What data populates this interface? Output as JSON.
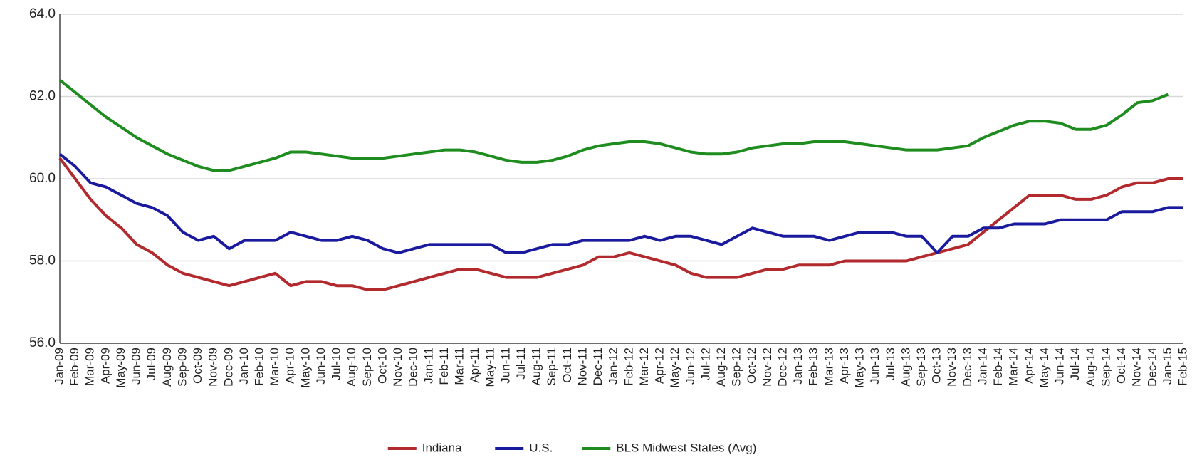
{
  "chart_data": {
    "type": "line",
    "categories": [
      "Jan-09",
      "Feb-09",
      "Mar-09",
      "Apr-09",
      "May-09",
      "Jun-09",
      "Jul-09",
      "Aug-09",
      "Sep-09",
      "Oct-09",
      "Nov-09",
      "Dec-09",
      "Jan-10",
      "Feb-10",
      "Mar-10",
      "Apr-10",
      "May-10",
      "Jun-10",
      "Jul-10",
      "Aug-10",
      "Sep-10",
      "Oct-10",
      "Nov-10",
      "Dec-10",
      "Jan-11",
      "Feb-11",
      "Mar-11",
      "Apr-11",
      "May-11",
      "Jun-11",
      "Jul-11",
      "Aug-11",
      "Sep-11",
      "Oct-11",
      "Nov-11",
      "Dec-11",
      "Jan-12",
      "Feb-12",
      "Mar-12",
      "Apr-12",
      "May-12",
      "Jun-12",
      "Jul-12",
      "Aug-12",
      "Sep-12",
      "Oct-12",
      "Nov-12",
      "Dec-12",
      "Jan-13",
      "Feb-13",
      "Mar-13",
      "Apr-13",
      "May-13",
      "Jun-13",
      "Jul-13",
      "Aug-13",
      "Sep-13",
      "Oct-13",
      "Nov-13",
      "Dec-13",
      "Jan-14",
      "Feb-14",
      "Mar-14",
      "Apr-14",
      "May-14",
      "Jun-14",
      "Jul-14",
      "Aug-14",
      "Sep-14",
      "Oct-14",
      "Nov-14",
      "Dec-14",
      "Jan-15",
      "Feb-15"
    ],
    "series": [
      {
        "name": "Indiana",
        "color": "#b22a2e",
        "values": [
          60.5,
          60.0,
          59.5,
          59.1,
          58.8,
          58.4,
          58.2,
          57.9,
          57.7,
          57.6,
          57.5,
          57.4,
          57.5,
          57.6,
          57.7,
          57.4,
          57.5,
          57.5,
          57.4,
          57.4,
          57.3,
          57.3,
          57.4,
          57.5,
          57.6,
          57.7,
          57.8,
          57.8,
          57.7,
          57.6,
          57.6,
          57.6,
          57.7,
          57.8,
          57.9,
          58.1,
          58.1,
          58.2,
          58.1,
          58.0,
          57.9,
          57.7,
          57.6,
          57.6,
          57.6,
          57.7,
          57.8,
          57.8,
          57.9,
          57.9,
          57.9,
          58.0,
          58.0,
          58.0,
          58.0,
          58.0,
          58.1,
          58.2,
          58.3,
          58.4,
          58.7,
          59.0,
          59.3,
          59.6,
          59.6,
          59.6,
          59.5,
          59.5,
          59.6,
          59.8,
          59.9,
          59.9,
          60.0,
          60.0
        ]
      },
      {
        "name": "U.S.",
        "color": "#1a1a9e",
        "values": [
          60.6,
          60.3,
          59.9,
          59.8,
          59.6,
          59.4,
          59.3,
          59.1,
          58.7,
          58.5,
          58.6,
          58.3,
          58.5,
          58.5,
          58.5,
          58.7,
          58.6,
          58.5,
          58.5,
          58.6,
          58.5,
          58.3,
          58.2,
          58.3,
          58.4,
          58.4,
          58.4,
          58.4,
          58.4,
          58.2,
          58.2,
          58.3,
          58.4,
          58.4,
          58.5,
          58.5,
          58.5,
          58.5,
          58.6,
          58.5,
          58.6,
          58.6,
          58.5,
          58.4,
          58.6,
          58.8,
          58.7,
          58.6,
          58.6,
          58.6,
          58.5,
          58.6,
          58.7,
          58.7,
          58.7,
          58.6,
          58.6,
          58.2,
          58.6,
          58.6,
          58.8,
          58.8,
          58.9,
          58.9,
          58.9,
          59.0,
          59.0,
          59.0,
          59.0,
          59.2,
          59.2,
          59.2,
          59.3,
          59.3
        ]
      },
      {
        "name": "BLS Midwest States (Avg)",
        "color": "#1e8c1e",
        "values": [
          62.4,
          62.1,
          61.8,
          61.5,
          61.25,
          61.0,
          60.8,
          60.6,
          60.45,
          60.3,
          60.2,
          60.2,
          60.3,
          60.4,
          60.5,
          60.65,
          60.65,
          60.6,
          60.55,
          60.5,
          60.5,
          60.5,
          60.55,
          60.6,
          60.65,
          60.7,
          60.7,
          60.65,
          60.55,
          60.45,
          60.4,
          60.4,
          60.45,
          60.55,
          60.7,
          60.8,
          60.85,
          60.9,
          60.9,
          60.85,
          60.75,
          60.65,
          60.6,
          60.6,
          60.65,
          60.75,
          60.8,
          60.85,
          60.85,
          60.9,
          60.9,
          60.9,
          60.85,
          60.8,
          60.75,
          60.7,
          60.7,
          60.7,
          60.75,
          60.8,
          61.0,
          61.15,
          61.3,
          61.4,
          61.4,
          61.35,
          61.2,
          61.2,
          61.3,
          61.55,
          61.85,
          61.9,
          62.05,
          null
        ]
      }
    ],
    "ylim": [
      56,
      64
    ],
    "yticks": [
      {
        "value": 56,
        "label": "56.0"
      },
      {
        "value": 58,
        "label": "58.0"
      },
      {
        "value": 60,
        "label": "60.0"
      },
      {
        "value": 62,
        "label": "62.0"
      },
      {
        "value": 64,
        "label": "64.0"
      }
    ],
    "grid": true,
    "legend": "bottom"
  }
}
